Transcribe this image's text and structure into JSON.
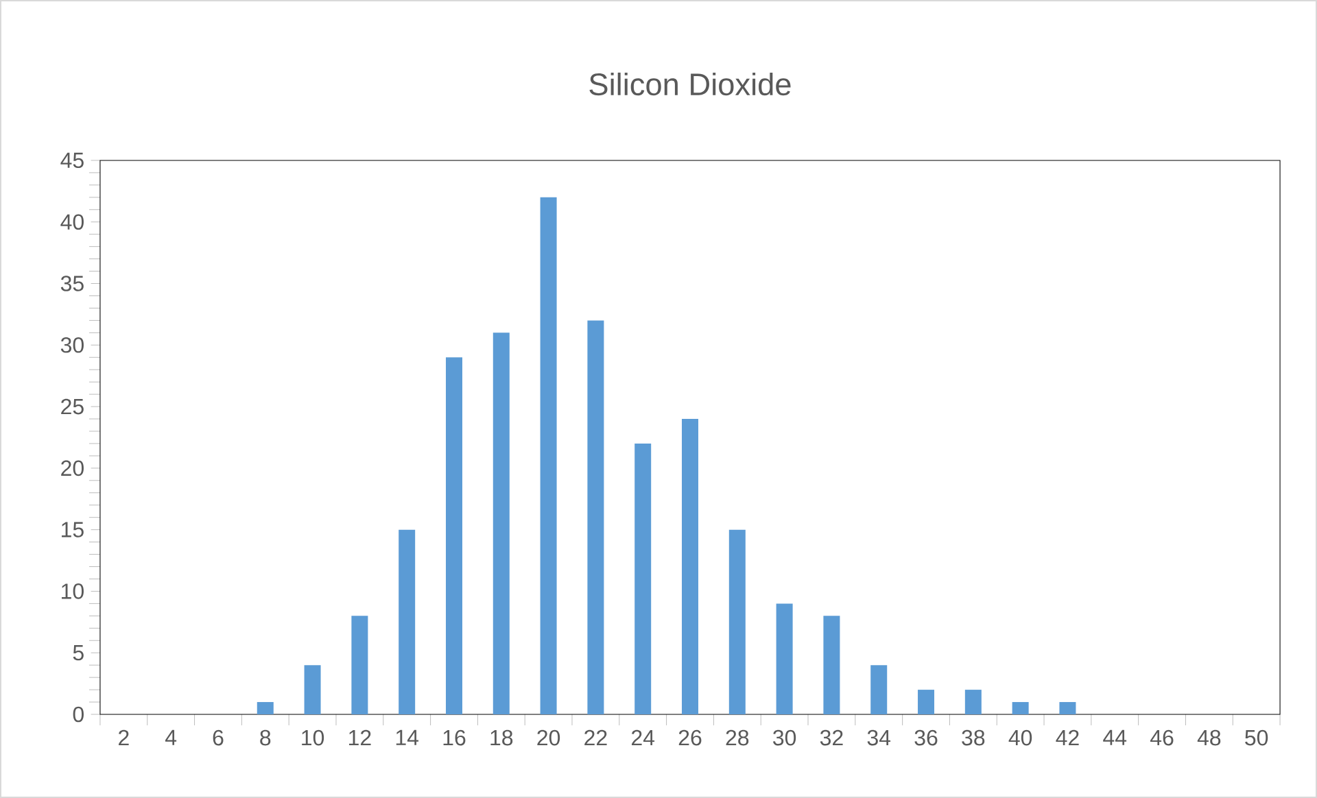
{
  "chart_data": {
    "type": "bar",
    "title": "Silicon Dioxide",
    "categories": [
      "2",
      "4",
      "6",
      "8",
      "10",
      "12",
      "14",
      "16",
      "18",
      "20",
      "22",
      "24",
      "26",
      "28",
      "30",
      "32",
      "34",
      "36",
      "38",
      "40",
      "42",
      "44",
      "46",
      "48",
      "50"
    ],
    "values": [
      0,
      0,
      0,
      1,
      4,
      8,
      15,
      29,
      31,
      42,
      32,
      22,
      24,
      15,
      9,
      8,
      4,
      2,
      2,
      1,
      1,
      0,
      0,
      0,
      0
    ],
    "color": "#5b9bd5",
    "ylim": [
      0,
      45
    ],
    "yticks": [
      0,
      5,
      10,
      15,
      20,
      25,
      30,
      35,
      40,
      45
    ],
    "grid": false
  }
}
